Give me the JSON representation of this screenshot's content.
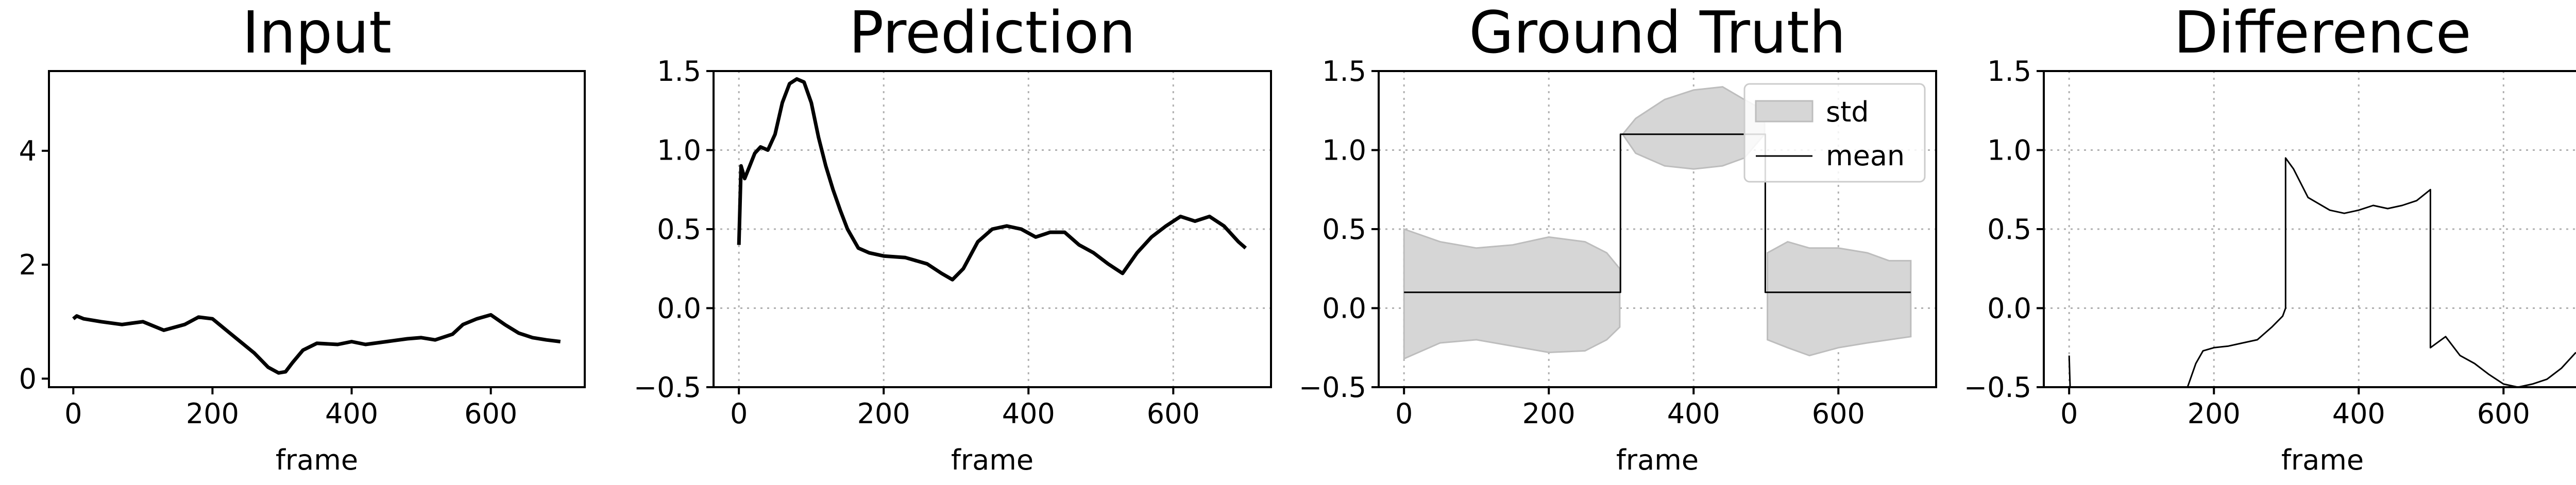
{
  "chart_data": [
    {
      "type": "line",
      "title": "Input",
      "xlabel": "frame",
      "ylabel": "",
      "xlim": [
        -35,
        735
      ],
      "ylim": [
        -0.15,
        5.4
      ],
      "xticks": [
        0,
        200,
        400,
        600
      ],
      "yticks": [
        0,
        2,
        4
      ],
      "ytick_labels": [
        "0",
        "2",
        "4"
      ],
      "grid": false,
      "series": [
        {
          "color": "#000000",
          "x": [
            0,
            5,
            15,
            40,
            70,
            100,
            130,
            160,
            180,
            200,
            220,
            240,
            260,
            280,
            295,
            305,
            315,
            330,
            350,
            380,
            400,
            420,
            450,
            480,
            500,
            520,
            545,
            560,
            580,
            600,
            620,
            640,
            660,
            680,
            700
          ],
          "y": [
            1.05,
            1.1,
            1.05,
            1.0,
            0.95,
            1.0,
            0.85,
            0.95,
            1.08,
            1.05,
            0.85,
            0.65,
            0.45,
            0.2,
            0.1,
            0.12,
            0.28,
            0.5,
            0.62,
            0.6,
            0.65,
            0.6,
            0.65,
            0.7,
            0.72,
            0.68,
            0.78,
            0.95,
            1.05,
            1.12,
            0.95,
            0.8,
            0.72,
            0.68,
            0.65
          ]
        }
      ]
    },
    {
      "type": "line",
      "title": "Prediction",
      "xlabel": "frame",
      "ylabel": "",
      "xlim": [
        -35,
        735
      ],
      "ylim": [
        -0.5,
        1.5
      ],
      "xticks": [
        0,
        200,
        400,
        600
      ],
      "yticks": [
        -0.5,
        0.0,
        0.5,
        1.0,
        1.5
      ],
      "ytick_labels": [
        "−0.5",
        "0.0",
        "0.5",
        "1.0",
        "1.5"
      ],
      "grid": true,
      "series": [
        {
          "color": "#000000",
          "x": [
            0,
            3,
            8,
            15,
            22,
            30,
            40,
            50,
            60,
            70,
            80,
            90,
            100,
            110,
            120,
            130,
            140,
            150,
            165,
            180,
            200,
            230,
            260,
            280,
            295,
            310,
            330,
            350,
            370,
            390,
            410,
            430,
            450,
            470,
            490,
            510,
            530,
            550,
            570,
            590,
            610,
            630,
            650,
            670,
            690,
            700
          ],
          "y": [
            0.4,
            0.9,
            0.82,
            0.9,
            0.98,
            1.02,
            1.0,
            1.1,
            1.3,
            1.42,
            1.45,
            1.43,
            1.3,
            1.08,
            0.9,
            0.75,
            0.62,
            0.5,
            0.38,
            0.35,
            0.33,
            0.32,
            0.28,
            0.22,
            0.18,
            0.25,
            0.42,
            0.5,
            0.52,
            0.5,
            0.45,
            0.48,
            0.48,
            0.4,
            0.35,
            0.28,
            0.22,
            0.35,
            0.45,
            0.52,
            0.58,
            0.55,
            0.58,
            0.52,
            0.42,
            0.38
          ]
        }
      ]
    },
    {
      "type": "area",
      "title": "Ground Truth",
      "xlabel": "frame",
      "ylabel": "",
      "xlim": [
        -35,
        735
      ],
      "ylim": [
        -0.5,
        1.5
      ],
      "xticks": [
        0,
        200,
        400,
        600
      ],
      "yticks": [
        -0.5,
        0.0,
        0.5,
        1.0,
        1.5
      ],
      "ytick_labels": [
        "−0.5",
        "0.0",
        "0.5",
        "1.0",
        "1.5"
      ],
      "grid": true,
      "legend": {
        "placement": "top-right",
        "entries": [
          "std",
          "mean"
        ]
      },
      "series": [
        {
          "name": "std",
          "color": "#d6d6d6",
          "band_segments": [
            {
              "x": [
                0,
                50,
                100,
                150,
                200,
                250,
                280,
                298
              ],
              "upper": [
                0.5,
                0.42,
                0.38,
                0.4,
                0.45,
                0.42,
                0.35,
                0.25
              ],
              "lower": [
                -0.32,
                -0.22,
                -0.2,
                -0.24,
                -0.28,
                -0.27,
                -0.2,
                -0.12
              ]
            },
            {
              "x": [
                302,
                320,
                360,
                400,
                440,
                470,
                498
              ],
              "upper": [
                1.1,
                1.2,
                1.32,
                1.38,
                1.4,
                1.32,
                1.25
              ],
              "lower": [
                1.1,
                0.98,
                0.9,
                0.88,
                0.9,
                0.95,
                1.1
              ]
            },
            {
              "x": [
                502,
                530,
                560,
                600,
                640,
                670,
                700
              ],
              "upper": [
                0.35,
                0.42,
                0.38,
                0.38,
                0.35,
                0.3,
                0.3
              ],
              "lower": [
                -0.2,
                -0.25,
                -0.3,
                -0.25,
                -0.22,
                -0.2,
                -0.18
              ]
            }
          ]
        },
        {
          "name": "mean",
          "color": "#000000",
          "x": [
            0,
            299,
            299,
            499,
            499,
            700
          ],
          "y": [
            0.1,
            0.1,
            1.1,
            1.1,
            0.1,
            0.1
          ]
        }
      ]
    },
    {
      "type": "line",
      "title": "Difference",
      "xlabel": "frame",
      "ylabel": "",
      "xlim": [
        -35,
        735
      ],
      "ylim": [
        -0.5,
        1.5
      ],
      "xticks": [
        0,
        200,
        400,
        600
      ],
      "yticks": [
        -0.5,
        0.0,
        0.5,
        1.0,
        1.5
      ],
      "ytick_labels": [
        "−0.5",
        "0.0",
        "0.5",
        "1.0",
        "1.5"
      ],
      "grid": true,
      "series": [
        {
          "color": "#000000",
          "segments": [
            {
              "x": [
                0,
                0.8,
                1.5
              ],
              "y": [
                -0.3,
                -0.42,
                -0.52
              ]
            },
            {
              "x": [
                162,
                175,
                185,
                200,
                220,
                240,
                260,
                280,
                295,
                299,
                299,
                310,
                330,
                360,
                380,
                400,
                420,
                440,
                460,
                480,
                499,
                499,
                520,
                540,
                560,
                580,
                600,
                620,
                640,
                660,
                680,
                700
              ],
              "y": [
                -0.52,
                -0.35,
                -0.27,
                -0.25,
                -0.24,
                -0.22,
                -0.2,
                -0.12,
                -0.05,
                0.0,
                0.95,
                0.88,
                0.7,
                0.62,
                0.6,
                0.62,
                0.65,
                0.63,
                0.65,
                0.68,
                0.75,
                -0.25,
                -0.18,
                -0.3,
                -0.35,
                -0.42,
                -0.48,
                -0.5,
                -0.48,
                -0.45,
                -0.38,
                -0.28
              ]
            }
          ]
        }
      ]
    }
  ]
}
